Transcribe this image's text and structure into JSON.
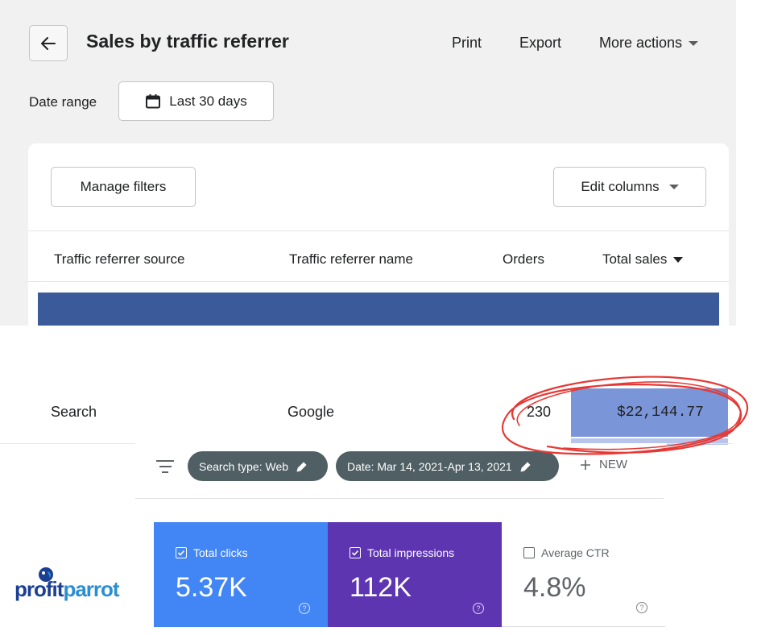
{
  "report": {
    "title": "Sales by traffic referrer",
    "actions": {
      "print": "Print",
      "export": "Export",
      "more": "More actions"
    },
    "date_range_label": "Date range",
    "date_range_value": "Last 30 days",
    "manage_filters": "Manage filters",
    "edit_columns": "Edit columns",
    "columns": [
      "Traffic referrer source",
      "Traffic referrer name",
      "Orders",
      "Total sales"
    ],
    "row": {
      "source": "Search",
      "name": "Google",
      "orders": "230",
      "total_sales": "$22,144.77"
    }
  },
  "search_console": {
    "chips": {
      "search_type": "Search type: Web",
      "date": "Date: Mar 14, 2021-Apr 13, 2021"
    },
    "new_label": "NEW",
    "tiles": [
      {
        "label": "Total clicks",
        "value": "5.37K",
        "checked": true,
        "color": "#4285f4"
      },
      {
        "label": "Total impressions",
        "value": "112K",
        "checked": true,
        "color": "#5e35b1"
      },
      {
        "label": "Average CTR",
        "value": "4.8%",
        "checked": false,
        "color": "#ffffff"
      }
    ]
  },
  "logo": {
    "part1": "pr",
    "part2": "fit",
    "part3": "parrot"
  },
  "colors": {
    "header_bar": "#3a5a9a",
    "highlight_cell": "#7a95d8",
    "annotation": "#e53935"
  }
}
